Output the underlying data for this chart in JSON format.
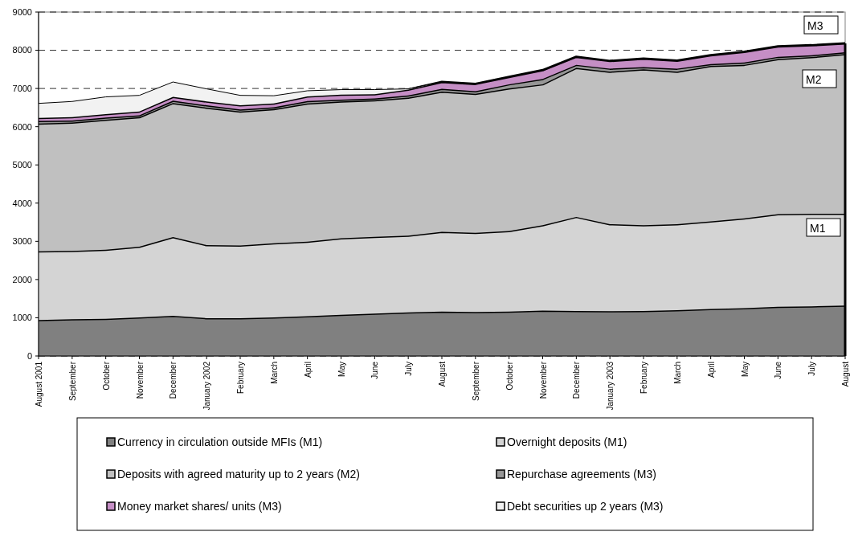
{
  "chart_data": {
    "type": "area",
    "stacked": true,
    "categories": [
      "August 2001",
      "September",
      "October",
      "November",
      "December",
      "January 2002",
      "February",
      "March",
      "April",
      "May",
      "June",
      "July",
      "August",
      "September",
      "October",
      "November",
      "December",
      "January 2003",
      "February",
      "March",
      "April",
      "May",
      "June",
      "July",
      "August"
    ],
    "series": [
      {
        "name": "Currency in circulation outside MFIs (M1)",
        "color": "#808080",
        "values": [
          940,
          960,
          970,
          1010,
          1050,
          990,
          990,
          1010,
          1040,
          1080,
          1110,
          1140,
          1160,
          1150,
          1160,
          1190,
          1180,
          1170,
          1180,
          1200,
          1230,
          1250,
          1290,
          1300,
          1320
        ]
      },
      {
        "name": "Overnight deposits (M1)",
        "color": "#d4d4d4",
        "values": [
          1800,
          1790,
          1810,
          1850,
          2060,
          1910,
          1900,
          1940,
          1950,
          2000,
          2010,
          2010,
          2090,
          2070,
          2110,
          2230,
          2460,
          2280,
          2240,
          2250,
          2290,
          2350,
          2420,
          2420,
          2400
        ]
      },
      {
        "name": "Deposits with agreed maturity up to 2 years (M2)",
        "color": "#c0c0c0",
        "values": [
          3340,
          3360,
          3400,
          3390,
          3510,
          3600,
          3510,
          3510,
          3620,
          3580,
          3570,
          3610,
          3670,
          3640,
          3730,
          3690,
          3900,
          3990,
          4080,
          3990,
          4070,
          4020,
          4060,
          4100,
          4180
        ]
      },
      {
        "name": "Repurchase agreements (M3)",
        "color": "#969696",
        "values": [
          70,
          50,
          60,
          50,
          60,
          60,
          50,
          50,
          60,
          50,
          50,
          60,
          70,
          70,
          110,
          140,
          80,
          80,
          60,
          80,
          50,
          60,
          60,
          50,
          50
        ]
      },
      {
        "name": "Money market shares/ units (M3)",
        "color": "#c58ec5",
        "values": [
          80,
          90,
          90,
          100,
          100,
          100,
          110,
          100,
          120,
          130,
          110,
          150,
          180,
          190,
          190,
          230,
          210,
          200,
          220,
          210,
          230,
          280,
          270,
          260,
          230
        ]
      },
      {
        "name": "Debt securities up 2 years (M3)",
        "color": "#f2f2f2",
        "values": [
          380,
          410,
          450,
          420,
          390,
          330,
          260,
          200,
          150,
          130,
          120,
          20,
          0,
          0,
          0,
          0,
          0,
          0,
          0,
          0,
          0,
          0,
          0,
          0,
          0
        ]
      }
    ],
    "ylim": [
      0,
      9000
    ],
    "yticks": [
      0,
      1000,
      2000,
      3000,
      4000,
      5000,
      6000,
      7000,
      8000,
      9000
    ],
    "grid": "y",
    "line_style": "solid",
    "legend": "bottom",
    "annotations": [
      "M1",
      "M2",
      "M3"
    ]
  }
}
